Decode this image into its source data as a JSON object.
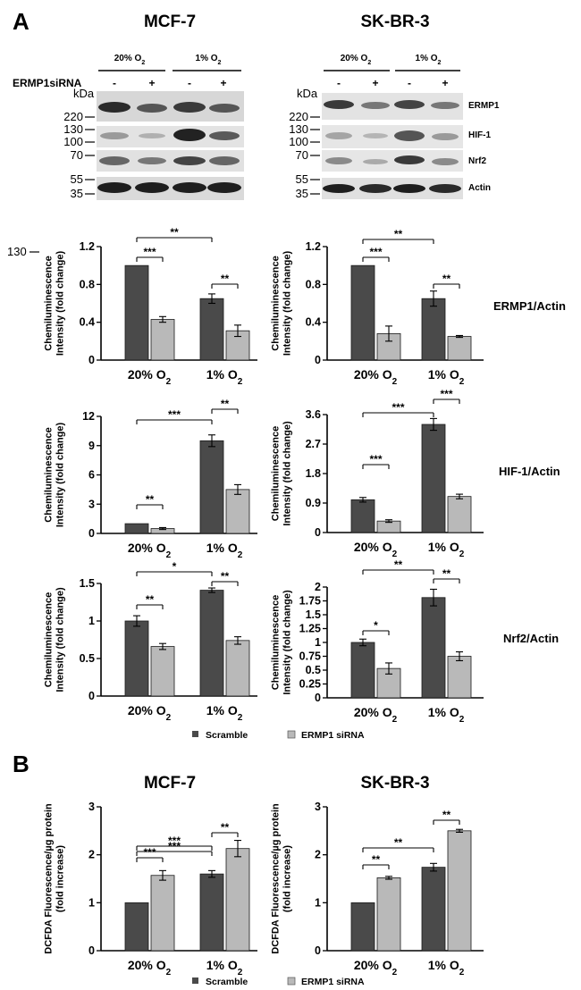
{
  "figure": {
    "panel_a": "A",
    "panel_b": "B",
    "titles": [
      "MCF-7",
      "SK-BR-3"
    ],
    "conditions": [
      "20% O2",
      "1% O2"
    ],
    "sirna_row_label": "ERMP1siRNA",
    "sirna_states": [
      "-",
      "+",
      "-",
      "+"
    ],
    "kda_unit": "kDa",
    "blot_markers": [
      "220",
      "130",
      "100",
      "70",
      "55",
      "35"
    ],
    "blot_rows": [
      "ERMP1",
      "HIF-1",
      "Nrf2",
      "Actin"
    ],
    "stray_marker": "130",
    "ylabel_a": [
      "Chemiluminescence",
      "Intensity (fold change)"
    ],
    "ylabel_b": [
      "DCFDA Fluorescence/µg protein",
      "(fold increase)"
    ],
    "row_labels": [
      "ERMP1/Actin",
      "HIF-1/Actin",
      "Nrf2/Actin"
    ],
    "legend": [
      "Scramble",
      "ERMP1 siRNA"
    ],
    "colors": {
      "scramble": "#4a4a4a",
      "sirna": "#b9b9b9",
      "axis": "#000000"
    }
  },
  "chart_data": [
    {
      "id": "ermp1_mcf7",
      "type": "bar",
      "row": "ERMP1/Actin",
      "cell_line": "MCF-7",
      "categories": [
        "20% O2",
        "1% O2"
      ],
      "ylim": [
        0,
        1.2
      ],
      "yticks": [
        "0",
        "0.4",
        "0.8",
        "1.2"
      ],
      "series": [
        {
          "name": "Scramble",
          "values": [
            1.0,
            0.65
          ],
          "errors": [
            0.0,
            0.05
          ]
        },
        {
          "name": "ERMP1 siRNA",
          "values": [
            0.43,
            0.31
          ],
          "errors": [
            0.03,
            0.06
          ]
        }
      ],
      "significance": [
        {
          "from": [
            0,
            0
          ],
          "to": [
            0,
            1
          ],
          "label": "***"
        },
        {
          "from": [
            1,
            0
          ],
          "to": [
            1,
            1
          ],
          "label": "**"
        },
        {
          "from": [
            0,
            0
          ],
          "to": [
            1,
            0
          ],
          "label": "**"
        }
      ]
    },
    {
      "id": "ermp1_skbr3",
      "type": "bar",
      "row": "ERMP1/Actin",
      "cell_line": "SK-BR-3",
      "categories": [
        "20% O2",
        "1% O2"
      ],
      "ylim": [
        0,
        1.2
      ],
      "yticks": [
        "0",
        "0.4",
        "0.8",
        "1.2"
      ],
      "series": [
        {
          "name": "Scramble",
          "values": [
            1.0,
            0.65
          ],
          "errors": [
            0.0,
            0.08
          ]
        },
        {
          "name": "ERMP1 siRNA",
          "values": [
            0.28,
            0.25
          ],
          "errors": [
            0.08,
            0.01
          ]
        }
      ],
      "significance": [
        {
          "from": [
            0,
            0
          ],
          "to": [
            0,
            1
          ],
          "label": "***"
        },
        {
          "from": [
            1,
            0
          ],
          "to": [
            1,
            1
          ],
          "label": "**"
        },
        {
          "from": [
            0,
            0
          ],
          "to": [
            1,
            0
          ],
          "label": "**"
        }
      ]
    },
    {
      "id": "hif1_mcf7",
      "type": "bar",
      "row": "HIF-1/Actin",
      "cell_line": "MCF-7",
      "categories": [
        "20% O2",
        "1% O2"
      ],
      "ylim": [
        0,
        12
      ],
      "yticks": [
        "0",
        "3",
        "6",
        "9",
        "12"
      ],
      "series": [
        {
          "name": "Scramble",
          "values": [
            1.0,
            9.5
          ],
          "errors": [
            0.0,
            0.6
          ]
        },
        {
          "name": "ERMP1 siRNA",
          "values": [
            0.5,
            4.5
          ],
          "errors": [
            0.1,
            0.5
          ]
        }
      ],
      "significance": [
        {
          "from": [
            0,
            0
          ],
          "to": [
            0,
            1
          ],
          "label": "**"
        },
        {
          "from": [
            1,
            0
          ],
          "to": [
            1,
            1
          ],
          "label": "**"
        },
        {
          "from": [
            0,
            0
          ],
          "to": [
            1,
            0
          ],
          "label": "***"
        }
      ]
    },
    {
      "id": "hif1_skbr3",
      "type": "bar",
      "row": "HIF-1/Actin",
      "cell_line": "SK-BR-3",
      "categories": [
        "20% O2",
        "1% O2"
      ],
      "ylim": [
        0,
        3.6
      ],
      "yticks": [
        "0",
        "0.9",
        "1.8",
        "2.7",
        "3.6"
      ],
      "series": [
        {
          "name": "Scramble",
          "values": [
            1.0,
            3.3
          ],
          "errors": [
            0.07,
            0.18
          ]
        },
        {
          "name": "ERMP1 siRNA",
          "values": [
            0.35,
            1.1
          ],
          "errors": [
            0.04,
            0.07
          ]
        }
      ],
      "significance": [
        {
          "from": [
            0,
            0
          ],
          "to": [
            0,
            1
          ],
          "label": "***"
        },
        {
          "from": [
            1,
            0
          ],
          "to": [
            1,
            1
          ],
          "label": "***"
        },
        {
          "from": [
            0,
            0
          ],
          "to": [
            1,
            0
          ],
          "label": "***"
        }
      ]
    },
    {
      "id": "nrf2_mcf7",
      "type": "bar",
      "row": "Nrf2/Actin",
      "cell_line": "MCF-7",
      "categories": [
        "20% O2",
        "1% O2"
      ],
      "ylim": [
        0,
        1.5
      ],
      "yticks": [
        "0",
        "0.5",
        "1",
        "1.5"
      ],
      "series": [
        {
          "name": "Scramble",
          "values": [
            1.0,
            1.41
          ],
          "errors": [
            0.07,
            0.03
          ]
        },
        {
          "name": "ERMP1 siRNA",
          "values": [
            0.66,
            0.74
          ],
          "errors": [
            0.04,
            0.05
          ]
        }
      ],
      "significance": [
        {
          "from": [
            0,
            0
          ],
          "to": [
            0,
            1
          ],
          "label": "**"
        },
        {
          "from": [
            1,
            0
          ],
          "to": [
            1,
            1
          ],
          "label": "**"
        },
        {
          "from": [
            0,
            0
          ],
          "to": [
            1,
            0
          ],
          "label": "*"
        }
      ]
    },
    {
      "id": "nrf2_skbr3",
      "type": "bar",
      "row": "Nrf2/Actin",
      "cell_line": "SK-BR-3",
      "categories": [
        "20% O2",
        "1% O2"
      ],
      "ylim": [
        0,
        2
      ],
      "yticks": [
        "0",
        "0.25",
        "0.5",
        "0.75",
        "1",
        "1.25",
        "1.5",
        "1.75",
        "2"
      ],
      "series": [
        {
          "name": "Scramble",
          "values": [
            1.0,
            1.81
          ],
          "errors": [
            0.06,
            0.15
          ]
        },
        {
          "name": "ERMP1 siRNA",
          "values": [
            0.53,
            0.75
          ],
          "errors": [
            0.1,
            0.08
          ]
        }
      ],
      "significance": [
        {
          "from": [
            0,
            0
          ],
          "to": [
            0,
            1
          ],
          "label": "*"
        },
        {
          "from": [
            1,
            0
          ],
          "to": [
            1,
            1
          ],
          "label": "**"
        },
        {
          "from": [
            0,
            0
          ],
          "to": [
            1,
            0
          ],
          "label": "**"
        }
      ]
    },
    {
      "id": "dcfda_mcf7",
      "type": "bar",
      "row": "DCFDA",
      "cell_line": "MCF-7",
      "categories": [
        "20% O2",
        "1% O2"
      ],
      "ylim": [
        0,
        3
      ],
      "yticks": [
        "0",
        "1",
        "2",
        "3"
      ],
      "series": [
        {
          "name": "Scramble",
          "values": [
            1.0,
            1.6
          ],
          "errors": [
            0.0,
            0.07
          ]
        },
        {
          "name": "ERMP1 siRNA",
          "values": [
            1.57,
            2.13
          ],
          "errors": [
            0.1,
            0.17
          ]
        }
      ],
      "significance": [
        {
          "from": [
            0,
            0
          ],
          "to": [
            0,
            1
          ],
          "label": "***"
        },
        {
          "from": [
            1,
            0
          ],
          "to": [
            1,
            1
          ],
          "label": "**"
        },
        {
          "from": [
            0,
            0
          ],
          "to": [
            1,
            0
          ],
          "label": "***"
        },
        {
          "from": [
            0,
            0
          ],
          "to": [
            1,
            0
          ],
          "label": "***"
        }
      ]
    },
    {
      "id": "dcfda_skbr3",
      "type": "bar",
      "row": "DCFDA",
      "cell_line": "SK-BR-3",
      "categories": [
        "20% O2",
        "1% O2"
      ],
      "ylim": [
        0,
        3
      ],
      "yticks": [
        "0",
        "1",
        "2",
        "3"
      ],
      "series": [
        {
          "name": "Scramble",
          "values": [
            1.0,
            1.74
          ],
          "errors": [
            0.0,
            0.08
          ]
        },
        {
          "name": "ERMP1 siRNA",
          "values": [
            1.52,
            2.5
          ],
          "errors": [
            0.03,
            0.03
          ]
        }
      ],
      "significance": [
        {
          "from": [
            0,
            0
          ],
          "to": [
            0,
            1
          ],
          "label": "**"
        },
        {
          "from": [
            1,
            0
          ],
          "to": [
            1,
            1
          ],
          "label": "**"
        },
        {
          "from": [
            0,
            0
          ],
          "to": [
            1,
            0
          ],
          "label": "**"
        }
      ]
    }
  ]
}
